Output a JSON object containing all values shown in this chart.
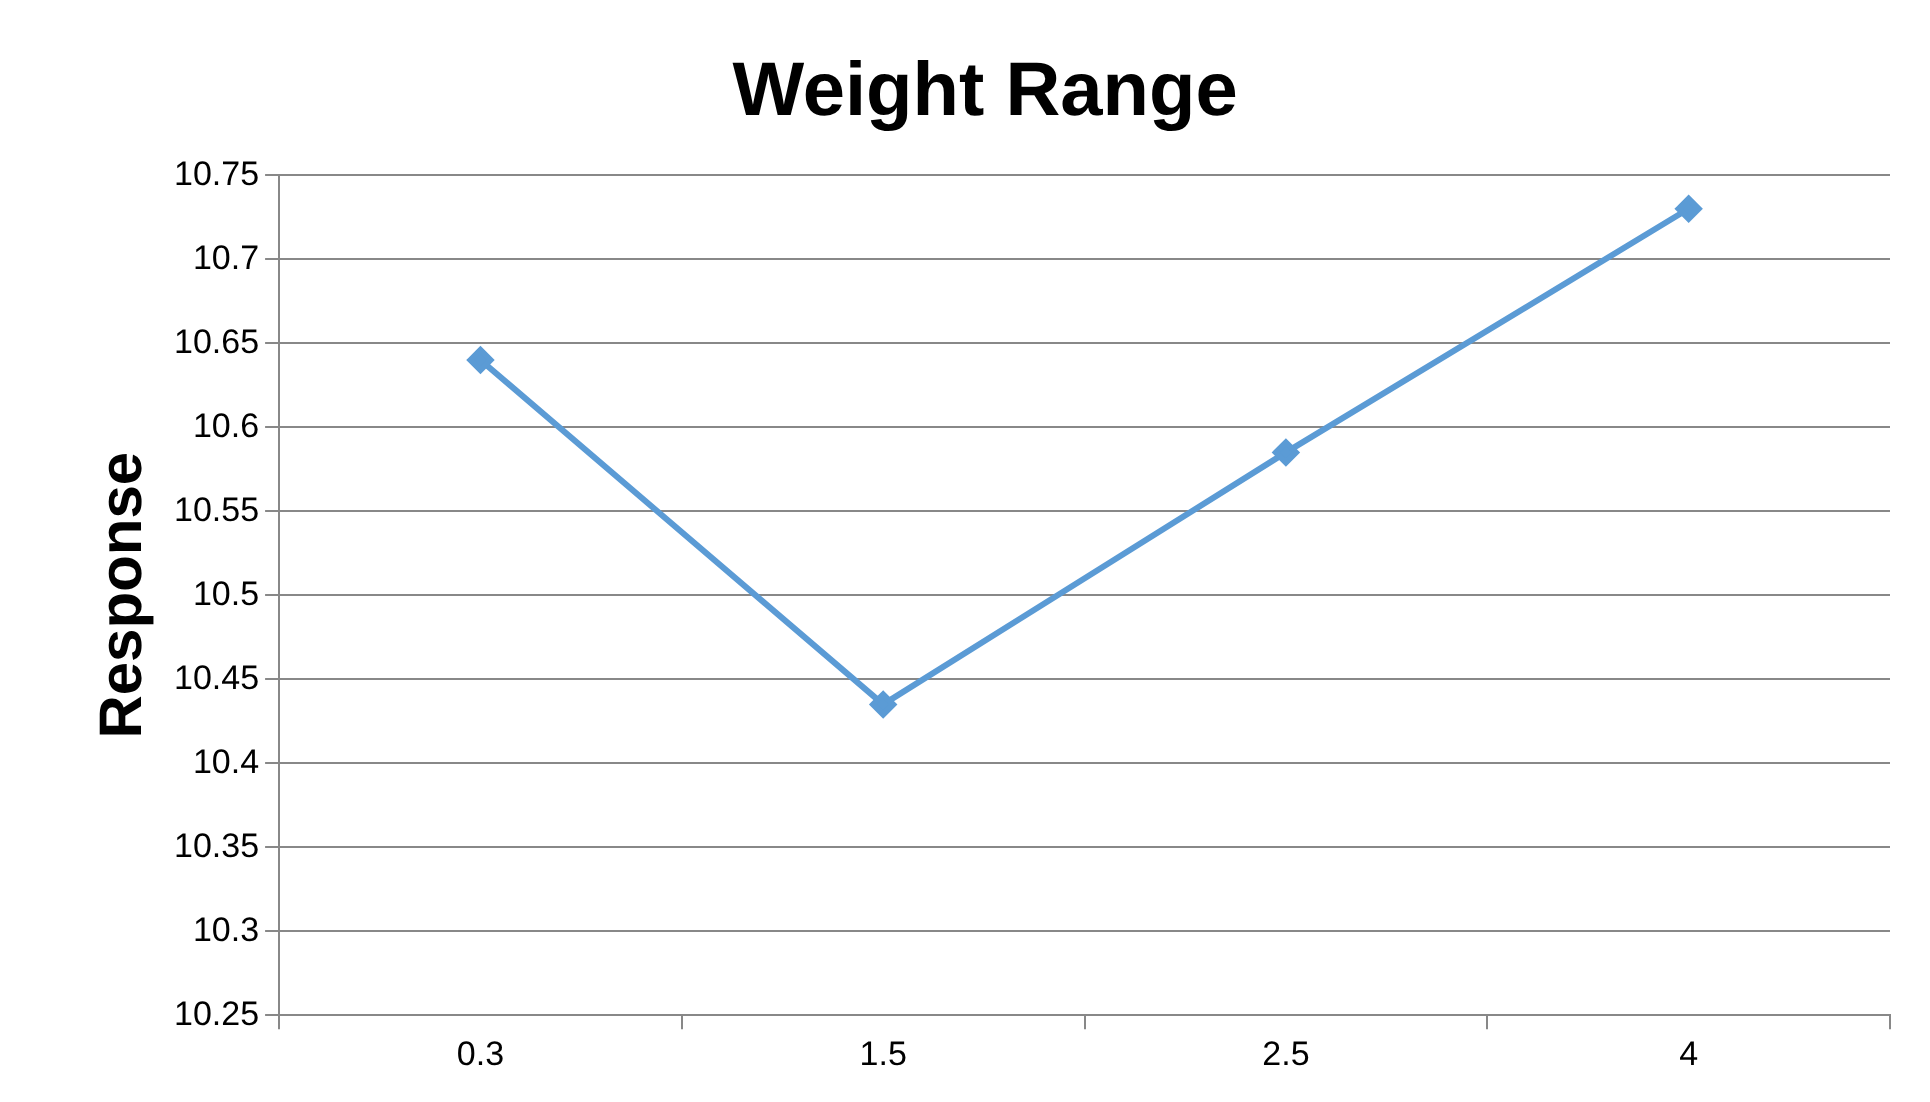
{
  "chart_data": {
    "type": "line",
    "title": "Weight Range",
    "ylabel": "Response",
    "categories": [
      "0.3",
      "1.5",
      "2.5",
      "4"
    ],
    "series": [
      {
        "color": "#5b9bd5",
        "values": [
          10.64,
          10.435,
          10.585,
          10.73
        ]
      }
    ],
    "ylim": [
      10.25,
      10.75
    ],
    "yticks": [
      10.25,
      10.3,
      10.35,
      10.4,
      10.45,
      10.5,
      10.55,
      10.6,
      10.65,
      10.7,
      10.75
    ],
    "grid": "y",
    "legend": false,
    "marker": "diamond",
    "line_style": "solid"
  }
}
